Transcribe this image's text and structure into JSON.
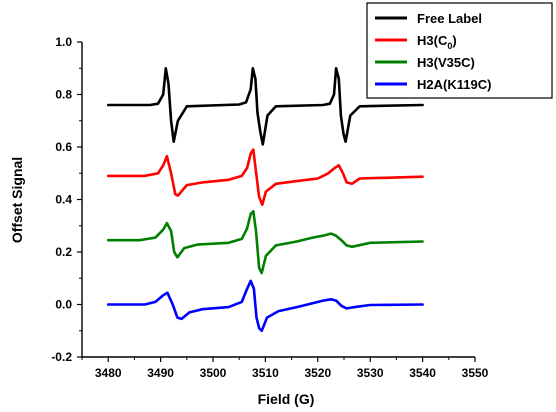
{
  "chart_data": {
    "type": "line",
    "title": "",
    "xlabel": "Field (G)",
    "ylabel": "Offset Signal",
    "xlim": [
      3475,
      3550
    ],
    "ylim": [
      -0.2,
      1.0
    ],
    "x_ticks": [
      "3480",
      "3490",
      "3500",
      "3510",
      "3520",
      "3530",
      "3540",
      "3550"
    ],
    "y_ticks": [
      "-0.2",
      "0.0",
      "0.2",
      "0.4",
      "0.6",
      "0.8",
      "1.0"
    ],
    "grid": false,
    "legend_position": "top-right",
    "series": [
      {
        "name": "Free Label",
        "color": "#000000",
        "x": [
          3480,
          3488,
          3489.5,
          3490.5,
          3491,
          3491.5,
          3492,
          3492.5,
          3493.3,
          3495,
          3505,
          3506.3,
          3507.2,
          3507.6,
          3508.1,
          3508.5,
          3509,
          3509.5,
          3510.4,
          3512,
          3521,
          3522.3,
          3523.1,
          3523.5,
          3524,
          3524.4,
          3524.9,
          3525.3,
          3526.2,
          3528,
          3540
        ],
        "values": [
          0.76,
          0.76,
          0.765,
          0.8,
          0.9,
          0.84,
          0.7,
          0.62,
          0.7,
          0.755,
          0.762,
          0.77,
          0.82,
          0.9,
          0.86,
          0.73,
          0.66,
          0.61,
          0.72,
          0.755,
          0.76,
          0.765,
          0.8,
          0.9,
          0.86,
          0.72,
          0.65,
          0.62,
          0.72,
          0.755,
          0.76
        ]
      },
      {
        "name": "H3(C0)",
        "legend_label_main": "H3(C",
        "legend_label_sub": "0",
        "legend_label_tail": ")",
        "color": "#ff0000",
        "x": [
          3480,
          3487,
          3489.5,
          3490.5,
          3491.2,
          3492,
          3492.8,
          3493.3,
          3495,
          3498,
          3503,
          3505.5,
          3506.5,
          3507.2,
          3507.7,
          3508.3,
          3508.8,
          3509.4,
          3510.1,
          3512,
          3516,
          3520,
          3522,
          3523.2,
          3524,
          3524.8,
          3525.5,
          3526.5,
          3528,
          3540
        ],
        "values": [
          0.49,
          0.49,
          0.5,
          0.53,
          0.565,
          0.5,
          0.42,
          0.415,
          0.455,
          0.465,
          0.475,
          0.49,
          0.52,
          0.575,
          0.59,
          0.49,
          0.41,
          0.38,
          0.43,
          0.46,
          0.47,
          0.48,
          0.5,
          0.52,
          0.53,
          0.5,
          0.465,
          0.46,
          0.48,
          0.487
        ]
      },
      {
        "name": "H3(V35C)",
        "color": "#008000",
        "x": [
          3480,
          3486,
          3489,
          3490.5,
          3491.2,
          3492,
          3492.6,
          3493.2,
          3494.5,
          3497,
          3503,
          3505.5,
          3506.5,
          3507.2,
          3507.7,
          3508.2,
          3508.8,
          3509.3,
          3510.1,
          3512,
          3516,
          3519,
          3521,
          3522.5,
          3523.5,
          3524.5,
          3525.5,
          3526.5,
          3530,
          3540
        ],
        "values": [
          0.245,
          0.245,
          0.255,
          0.285,
          0.31,
          0.28,
          0.2,
          0.18,
          0.215,
          0.228,
          0.235,
          0.25,
          0.29,
          0.345,
          0.355,
          0.28,
          0.14,
          0.12,
          0.185,
          0.225,
          0.24,
          0.255,
          0.262,
          0.27,
          0.262,
          0.245,
          0.225,
          0.22,
          0.235,
          0.24
        ]
      },
      {
        "name": "H2A(K119C)",
        "color": "#0000ff",
        "x": [
          3480,
          3487,
          3489,
          3490.5,
          3491.3,
          3492.3,
          3493.2,
          3494,
          3495.5,
          3498,
          3503,
          3505.5,
          3506.5,
          3507.2,
          3507.8,
          3508.3,
          3508.8,
          3509.3,
          3510.3,
          3512.5,
          3516,
          3519,
          3521,
          3522.5,
          3523.5,
          3524.5,
          3525.5,
          3527,
          3530,
          3540
        ],
        "values": [
          0.0,
          0.0,
          0.01,
          0.035,
          0.045,
          0.0,
          -0.05,
          -0.055,
          -0.03,
          -0.018,
          -0.01,
          0.01,
          0.06,
          0.09,
          0.06,
          -0.05,
          -0.09,
          -0.1,
          -0.05,
          -0.025,
          -0.01,
          0.005,
          0.015,
          0.02,
          0.015,
          -0.005,
          -0.015,
          -0.01,
          -0.002,
          0.0
        ]
      }
    ]
  }
}
